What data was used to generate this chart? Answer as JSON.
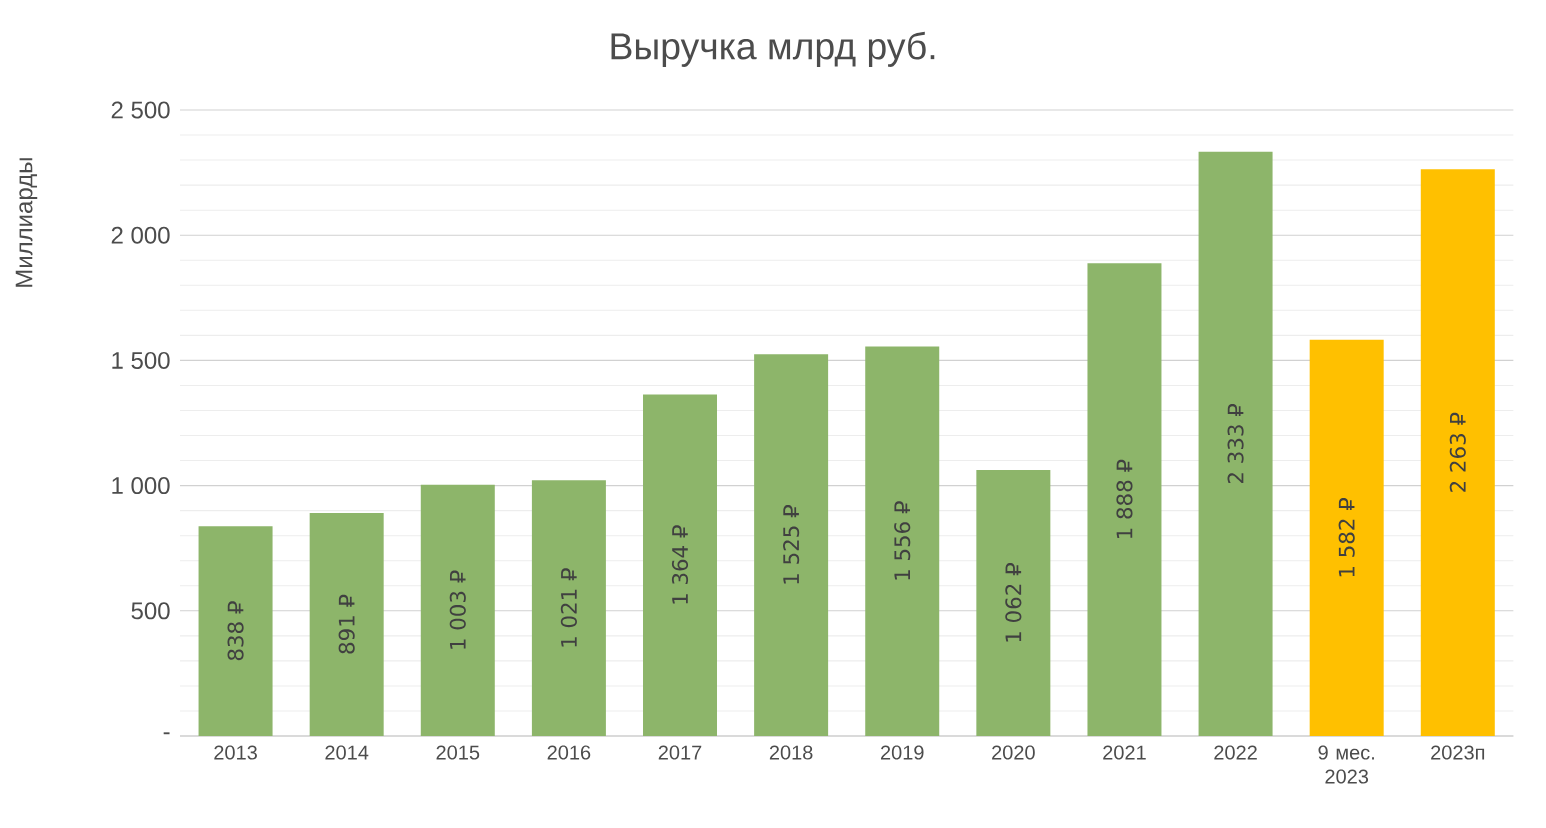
{
  "chart_data": {
    "type": "bar",
    "title": "Выручка млрд руб.",
    "ylabel": "Миллиарды",
    "categories": [
      "2013",
      "2014",
      "2015",
      "2016",
      "2017",
      "2018",
      "2019",
      "2020",
      "2021",
      "2022",
      "9 мес. 2023",
      "2023п"
    ],
    "values": [
      838,
      891,
      1003,
      1021,
      1364,
      1525,
      1556,
      1062,
      1888,
      2333,
      1582,
      2263
    ],
    "value_labels": [
      "838 ₽",
      "891 ₽",
      "1 003 ₽",
      "1 021 ₽",
      "1 364 ₽",
      "1 525 ₽",
      "1 556 ₽",
      "1 062 ₽",
      "1 888 ₽",
      "2 333 ₽",
      "1 582 ₽",
      "2 263 ₽"
    ],
    "colors": [
      "#8db56a",
      "#8db56a",
      "#8db56a",
      "#8db56a",
      "#8db56a",
      "#8db56a",
      "#8db56a",
      "#8db56a",
      "#8db56a",
      "#8db56a",
      "#ffc000",
      "#ffc000"
    ],
    "ylim": [
      0,
      2500
    ],
    "yticks": [
      {
        "value": 0,
        "label": "-"
      },
      500,
      {
        "value": 1000,
        "label": "1 000"
      },
      {
        "value": 1500,
        "label": "1 500"
      },
      {
        "value": 2000,
        "label": "2 000"
      },
      {
        "value": 2500,
        "label": "2 500"
      }
    ],
    "grid": true
  }
}
